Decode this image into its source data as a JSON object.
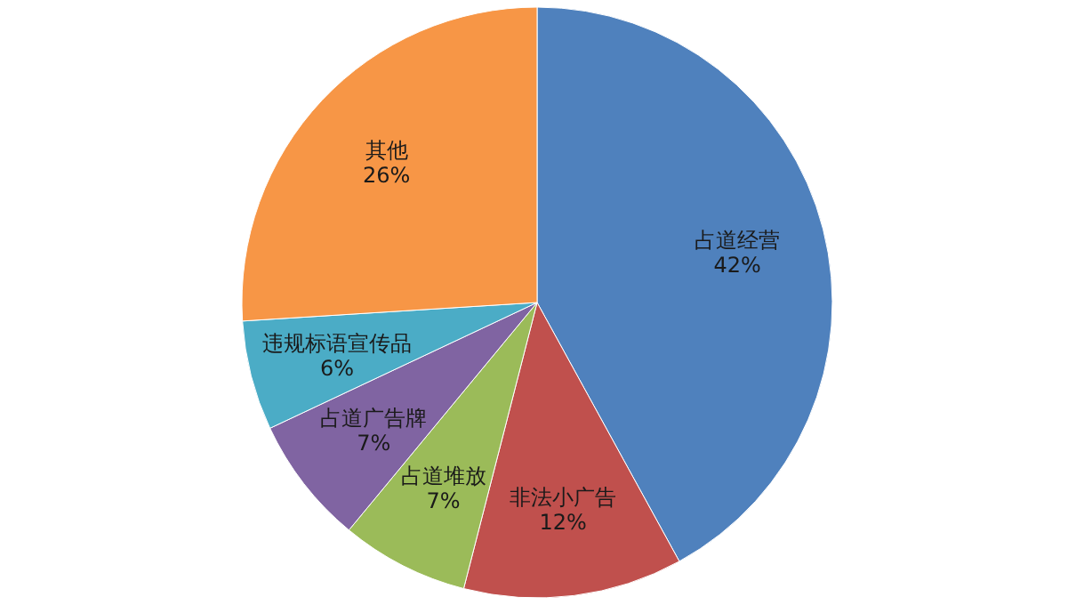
{
  "chart_data": {
    "type": "pie",
    "categories": [
      "占道经营",
      "非法小广告",
      "占道堆放",
      "占道广告牌",
      "违规标语宣传品",
      "其他"
    ],
    "values": [
      42,
      12,
      7,
      7,
      6,
      26
    ],
    "colors": [
      "#4f81bd",
      "#c0504d",
      "#9bbb59",
      "#8064a2",
      "#4bacc6",
      "#f79646"
    ],
    "value_labels": [
      "42%",
      "12%",
      "7%",
      "7%",
      "6%",
      "26%"
    ]
  }
}
